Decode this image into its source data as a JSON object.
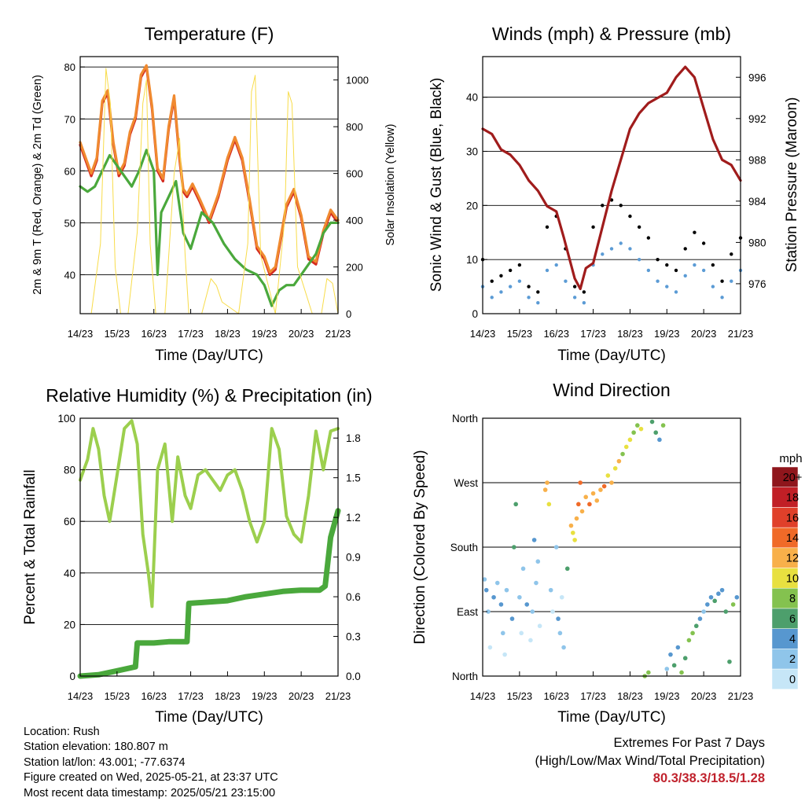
{
  "x_ticks": [
    "14/23",
    "15/23",
    "16/23",
    "17/23",
    "18/23",
    "19/23",
    "20/23",
    "21/23"
  ],
  "chart_data": [
    {
      "type": "line",
      "title": "Temperature (F)",
      "xlabel": "Time (Day/UTC)",
      "ylabel": "2m & 9m T (Red, Orange) & 2m Td (Green)",
      "ylabel_right": "Solar Insolation (Yellow)",
      "x_unit": "days since 14/23",
      "xlim": [
        0,
        7
      ],
      "ylim": [
        32.5,
        82
      ],
      "yticks": [
        40,
        50,
        60,
        70,
        80
      ],
      "ylim_right": [
        0,
        1100
      ],
      "yticks_right": [
        0,
        200,
        400,
        600,
        800,
        1000
      ],
      "grid": true,
      "series": [
        {
          "name": "2m T",
          "color": "#d42a20",
          "axis": "left",
          "x": [
            0,
            0.15,
            0.3,
            0.45,
            0.6,
            0.75,
            0.9,
            1.05,
            1.2,
            1.35,
            1.5,
            1.65,
            1.8,
            1.95,
            2.1,
            2.25,
            2.4,
            2.55,
            2.7,
            2.8,
            2.9,
            3.05,
            3.25,
            3.5,
            3.75,
            4.0,
            4.2,
            4.4,
            4.6,
            4.8,
            5.0,
            5.15,
            5.3,
            5.45,
            5.6,
            5.8,
            6.0,
            6.2,
            6.4,
            6.6,
            6.8,
            7.0
          ],
          "y": [
            65,
            62,
            59,
            62,
            73,
            75,
            65,
            59,
            61,
            67,
            70,
            78,
            80,
            72,
            60,
            58,
            68,
            74,
            62,
            56,
            55,
            57,
            54,
            50,
            55,
            62,
            66,
            62,
            54,
            45,
            43,
            40,
            41,
            47,
            53,
            56,
            51,
            43,
            42,
            48,
            52,
            50
          ]
        },
        {
          "name": "9m T",
          "color": "#f08a30",
          "axis": "left",
          "x": [
            0,
            0.15,
            0.3,
            0.45,
            0.6,
            0.75,
            0.9,
            1.05,
            1.2,
            1.35,
            1.5,
            1.65,
            1.8,
            1.95,
            2.1,
            2.25,
            2.4,
            2.55,
            2.7,
            2.8,
            2.9,
            3.05,
            3.25,
            3.5,
            3.75,
            4.0,
            4.2,
            4.4,
            4.6,
            4.8,
            5.0,
            5.15,
            5.3,
            5.45,
            5.6,
            5.8,
            6.0,
            6.2,
            6.4,
            6.6,
            6.8,
            7.0
          ],
          "y": [
            65.5,
            62.5,
            59.5,
            62.5,
            73.5,
            75.5,
            65.5,
            59.5,
            61.5,
            67.5,
            70.5,
            78.5,
            80.3,
            72.5,
            60.5,
            58.5,
            68.5,
            74.5,
            62.5,
            56.5,
            55.5,
            57.5,
            54.5,
            50.5,
            55.5,
            62.5,
            66.5,
            62.5,
            54.5,
            45.5,
            43.5,
            40.5,
            41.5,
            47.5,
            53.5,
            56.5,
            51.5,
            43.5,
            42.5,
            48.5,
            52.5,
            50.5
          ]
        },
        {
          "name": "2m Td",
          "color": "#4aa83c",
          "axis": "left",
          "x": [
            0,
            0.2,
            0.4,
            0.6,
            0.8,
            1.0,
            1.2,
            1.4,
            1.6,
            1.8,
            2.0,
            2.1,
            2.2,
            2.4,
            2.6,
            2.8,
            3.0,
            3.3,
            3.6,
            3.9,
            4.2,
            4.5,
            4.8,
            5.0,
            5.2,
            5.4,
            5.6,
            5.8,
            6.0,
            6.2,
            6.4,
            6.6,
            6.8,
            7.0
          ],
          "y": [
            57,
            56,
            57,
            60,
            63,
            61,
            59,
            57,
            60,
            64,
            60,
            40,
            52,
            55,
            58,
            48,
            45,
            52,
            50,
            46,
            43,
            41,
            40,
            38,
            34,
            37,
            38,
            38,
            40,
            42,
            44,
            48,
            50,
            50
          ]
        },
        {
          "name": "Solar Insolation",
          "color": "#f8dc4a",
          "axis": "right",
          "width": 1,
          "x": [
            0,
            0.3,
            0.55,
            0.7,
            0.82,
            0.95,
            1.1,
            1.3,
            1.55,
            1.7,
            1.8,
            1.9,
            2.05,
            2.3,
            2.55,
            2.7,
            2.85,
            2.95,
            3.3,
            3.55,
            3.7,
            3.85,
            4.3,
            4.55,
            4.65,
            4.75,
            4.9,
            5.3,
            5.55,
            5.65,
            5.75,
            5.9,
            6.3,
            6.55,
            6.7,
            6.85,
            7.0
          ],
          "y": [
            0,
            0,
            300,
            1050,
            900,
            200,
            0,
            0,
            350,
            900,
            1000,
            300,
            0,
            0,
            600,
            750,
            250,
            0,
            0,
            150,
            120,
            50,
            0,
            300,
            950,
            1020,
            250,
            0,
            400,
            950,
            900,
            200,
            0,
            0,
            150,
            130,
            0
          ]
        }
      ]
    },
    {
      "type": "scatter",
      "title": "Winds (mph) & Pressure (mb)",
      "xlabel": "Time (Day/UTC)",
      "ylabel": "Sonic Wind & Gust (Blue, Black)",
      "ylabel_right": "Station Pressure (Maroon)",
      "x_unit": "days since 14/23",
      "xlim": [
        0,
        7
      ],
      "ylim": [
        0,
        47.5
      ],
      "yticks": [
        0,
        10,
        20,
        30,
        40
      ],
      "ylim_right": [
        973.1,
        998
      ],
      "yticks_right": [
        976,
        980,
        984,
        988,
        992,
        996
      ],
      "grid": true,
      "series": [
        {
          "name": "Sonic Wind",
          "color": "#5b9bd5",
          "axis": "left",
          "x": [
            0,
            0.25,
            0.5,
            0.75,
            1.0,
            1.25,
            1.5,
            1.75,
            2.0,
            2.25,
            2.5,
            2.75,
            3.0,
            3.25,
            3.5,
            3.75,
            4.0,
            4.25,
            4.5,
            4.75,
            5.0,
            5.25,
            5.5,
            5.75,
            6.0,
            6.25,
            6.5,
            6.75,
            7.0
          ],
          "y": [
            5,
            3,
            4,
            5,
            6,
            3,
            2,
            8,
            9,
            6,
            3,
            2,
            9,
            11,
            12,
            13,
            12,
            10,
            8,
            6,
            5,
            4,
            7,
            9,
            8,
            5,
            3,
            6,
            8
          ]
        },
        {
          "name": "Gust",
          "color": "#000000",
          "axis": "left",
          "x": [
            0,
            0.25,
            0.5,
            0.75,
            1.0,
            1.25,
            1.5,
            1.75,
            2.0,
            2.25,
            2.5,
            2.75,
            3.0,
            3.25,
            3.5,
            3.75,
            4.0,
            4.25,
            4.5,
            4.75,
            5.0,
            5.25,
            5.5,
            5.75,
            6.0,
            6.25,
            6.5,
            6.75,
            7.0
          ],
          "y": [
            10,
            6,
            7,
            8,
            9,
            5,
            4,
            16,
            18,
            12,
            5,
            4,
            16,
            20,
            21,
            20,
            18,
            16,
            14,
            10,
            9,
            8,
            12,
            15,
            13,
            9,
            6,
            11,
            14
          ]
        },
        {
          "name": "Station Pressure",
          "color": "#a01c1c",
          "axis": "right",
          "x": [
            0,
            0.25,
            0.5,
            0.75,
            1.0,
            1.25,
            1.5,
            1.75,
            2.0,
            2.2,
            2.35,
            2.5,
            2.65,
            2.8,
            3.0,
            3.25,
            3.5,
            3.75,
            4.0,
            4.25,
            4.5,
            4.75,
            5.0,
            5.25,
            5.5,
            5.75,
            6.0,
            6.25,
            6.5,
            6.75,
            7.0
          ],
          "y": [
            991,
            990.5,
            989,
            988.5,
            987.5,
            986,
            985,
            983.5,
            983,
            980.5,
            978.5,
            976.5,
            975.5,
            977.5,
            978,
            981.5,
            985,
            988,
            991,
            992.5,
            993.5,
            994,
            994.5,
            996,
            997,
            996,
            993,
            990,
            988,
            987.5,
            986
          ]
        }
      ]
    },
    {
      "type": "line",
      "title": "Relative Humidity (%) & Precipitation (in)",
      "xlabel": "Time (Day/UTC)",
      "ylabel": "Percent & Total Rainfall",
      "x_unit": "days since 14/23",
      "xlim": [
        0,
        7
      ],
      "ylim": [
        0,
        100
      ],
      "yticks": [
        0,
        20,
        40,
        60,
        80,
        100
      ],
      "ylim_right": [
        0,
        1.95
      ],
      "yticks_right": [
        0.0,
        0.3,
        0.6,
        0.9,
        1.2,
        1.5,
        1.8
      ],
      "yticks_right_labels": [
        "0.0",
        "0.3",
        "0.6",
        "0.9",
        "1.2",
        "1.5",
        "1.8"
      ],
      "grid": true,
      "series": [
        {
          "name": "Relative Humidity",
          "color": "#9ccf4e",
          "axis": "left",
          "x": [
            0,
            0.2,
            0.35,
            0.5,
            0.65,
            0.8,
            1.0,
            1.2,
            1.4,
            1.55,
            1.7,
            1.85,
            1.95,
            2.1,
            2.3,
            2.5,
            2.65,
            2.85,
            3.0,
            3.2,
            3.4,
            3.6,
            3.8,
            4.0,
            4.2,
            4.4,
            4.6,
            4.8,
            5.0,
            5.2,
            5.4,
            5.6,
            5.8,
            6.0,
            6.2,
            6.4,
            6.6,
            6.8,
            7.0
          ],
          "y": [
            76,
            84,
            96,
            88,
            70,
            60,
            78,
            96,
            99,
            90,
            55,
            40,
            27,
            80,
            90,
            60,
            85,
            70,
            65,
            78,
            80,
            76,
            72,
            78,
            80,
            72,
            60,
            52,
            60,
            96,
            88,
            62,
            55,
            52,
            70,
            95,
            80,
            95,
            96
          ]
        },
        {
          "name": "Total Rainfall",
          "color": "#4aa83c",
          "axis": "right",
          "x": [
            0,
            0.5,
            1.0,
            1.5,
            1.55,
            2.0,
            2.4,
            2.9,
            2.95,
            3.5,
            4.0,
            4.5,
            5.0,
            5.5,
            6.0,
            6.5,
            6.65,
            6.8,
            7.0
          ],
          "y": [
            0.0,
            0.01,
            0.04,
            0.07,
            0.25,
            0.25,
            0.26,
            0.26,
            0.55,
            0.56,
            0.57,
            0.6,
            0.62,
            0.64,
            0.65,
            0.65,
            0.68,
            1.05,
            1.25
          ]
        }
      ]
    },
    {
      "type": "scatter",
      "title": "Wind Direction",
      "xlabel": "Time (Day/UTC)",
      "ylabel": "Direction (Colored By Speed)",
      "x_unit": "days since 14/23",
      "xlim": [
        0,
        7
      ],
      "y_unit": "degrees (North=0, East=90, South=180, West=270, North=360)",
      "ylim": [
        0,
        360
      ],
      "yticks": [
        0,
        90,
        180,
        270,
        360
      ],
      "ytick_labels": [
        "North",
        "East",
        "South",
        "West",
        "North"
      ],
      "grid": true,
      "colorbar": {
        "title": "mph",
        "labels": [
          "0",
          "2",
          "4",
          "6",
          "8",
          "10",
          "12",
          "14",
          "16",
          "18",
          "20+"
        ],
        "colors": [
          "#c6e6f7",
          "#8fc5ea",
          "#5797cf",
          "#4d9f6c",
          "#84c24f",
          "#e8e040",
          "#f8b04a",
          "#f06a28",
          "#e0402a",
          "#c11f26",
          "#8f161c"
        ]
      },
      "series": [
        {
          "name": "direction",
          "x": [
            0.05,
            0.1,
            0.15,
            0.2,
            0.3,
            0.4,
            0.5,
            0.55,
            0.6,
            0.65,
            0.8,
            0.85,
            0.9,
            1.0,
            1.05,
            1.1,
            1.2,
            1.3,
            1.35,
            1.4,
            1.45,
            1.5,
            1.55,
            1.7,
            1.75,
            1.8,
            1.85,
            1.9,
            2.0,
            2.05,
            2.1,
            2.15,
            2.2,
            2.3,
            2.4,
            2.45,
            2.5,
            2.55,
            2.6,
            2.65,
            2.7,
            2.8,
            2.9,
            3.0,
            3.1,
            3.2,
            3.3,
            3.4,
            3.5,
            3.6,
            3.7,
            3.8,
            3.9,
            4.0,
            4.1,
            4.2,
            4.3,
            4.4,
            4.5,
            4.6,
            4.7,
            4.8,
            4.9,
            5.0,
            5.1,
            5.2,
            5.3,
            5.4,
            5.5,
            5.6,
            5.7,
            5.8,
            5.9,
            6.0,
            6.1,
            6.2,
            6.3,
            6.4,
            6.5,
            6.6,
            6.7,
            6.8,
            6.9
          ],
          "y": [
            135,
            120,
            90,
            40,
            110,
            130,
            100,
            60,
            30,
            120,
            80,
            180,
            240,
            110,
            60,
            150,
            100,
            50,
            90,
            190,
            130,
            160,
            70,
            260,
            270,
            240,
            120,
            90,
            180,
            80,
            60,
            110,
            40,
            150,
            210,
            200,
            190,
            220,
            240,
            270,
            230,
            250,
            240,
            255,
            245,
            260,
            265,
            280,
            270,
            290,
            300,
            310,
            320,
            330,
            340,
            350,
            345,
            0,
            5,
            355,
            340,
            330,
            350,
            10,
            30,
            15,
            40,
            5,
            25,
            50,
            60,
            70,
            80,
            90,
            100,
            110,
            105,
            115,
            120,
            90,
            20,
            100,
            110
          ],
          "speed": [
            3,
            4,
            2,
            1,
            4,
            3,
            5,
            2,
            1,
            3,
            4,
            6,
            7,
            2,
            1,
            3,
            5,
            1,
            2,
            4,
            3,
            2,
            1,
            12,
            13,
            11,
            2,
            1,
            3,
            4,
            2,
            1,
            2,
            6,
            12,
            11,
            10,
            13,
            14,
            15,
            12,
            13,
            14,
            12,
            13,
            12,
            14,
            11,
            13,
            10,
            12,
            9,
            10,
            11,
            9,
            8,
            10,
            9,
            8,
            6,
            7,
            5,
            8,
            3,
            4,
            6,
            5,
            8,
            7,
            9,
            8,
            6,
            4,
            3,
            5,
            4,
            6,
            5,
            4,
            6,
            7,
            8,
            5
          ]
        }
      ]
    }
  ],
  "info": {
    "location": "Location: Rush",
    "elevation": "Station elevation: 180.807 m",
    "latlon": "Station lat/lon: 43.001; -77.6374",
    "created": "Figure created on Wed, 2025-05-21, at 23:37 UTC",
    "timestamp": "Most recent data timestamp: 2025/05/21 23:15:00"
  },
  "extremes": {
    "title": "Extremes For Past 7 Days",
    "subtitle": "(High/Low/Max Wind/Total Precipitation)",
    "values": "80.3/38.3/18.5/1.28",
    "color": "#c0222d"
  }
}
